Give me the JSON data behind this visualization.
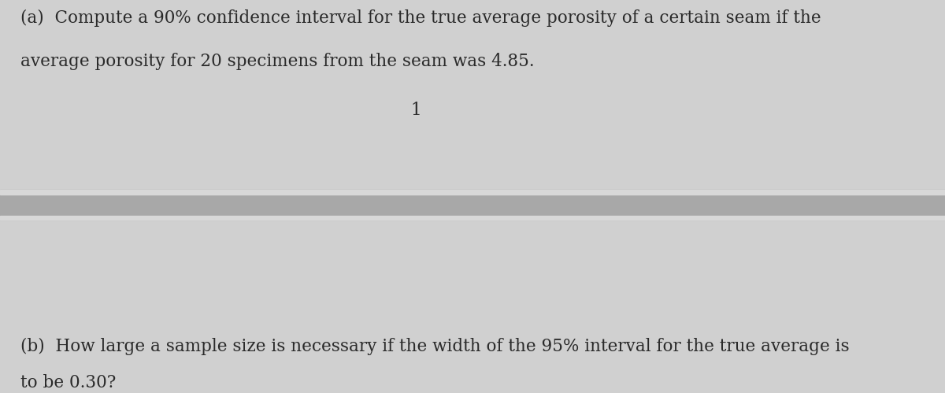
{
  "bg_top": "#d0d0d0",
  "bg_bottom": "#cbcbcb",
  "divider_color_main": "#a8a8a8",
  "divider_color_light": "#d8d8d8",
  "text_color": "#2a2a2a",
  "text_a_line1": "(a)  Compute a 90% confidence interval for the true average porosity of a certain seam if the",
  "text_a_line2": "average porosity for 20 specimens from the seam was 4.85.",
  "text_center": "1",
  "text_b_line1": "(b)  How large a sample size is necessary if the width of the 95% interval for the true average is",
  "text_b_line2": "to be 0.30?",
  "font_size_main": 15.5,
  "font_size_center": 15.5,
  "fig_width": 12.0,
  "fig_height": 4.99,
  "dpi": 100
}
